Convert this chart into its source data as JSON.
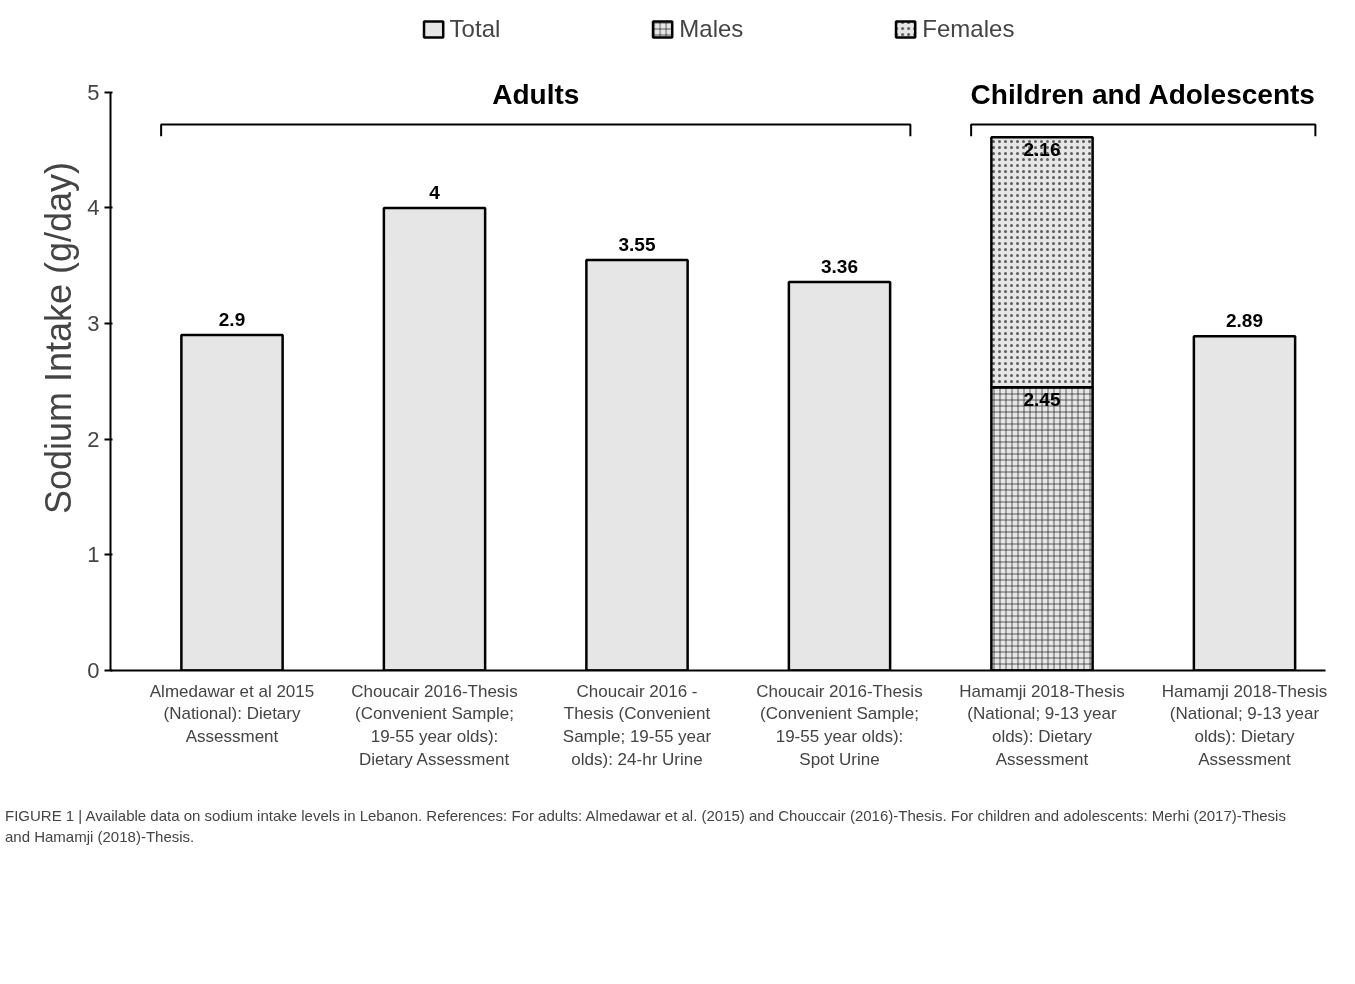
{
  "chart_data": {
    "type": "bar",
    "stacked": true,
    "ylabel": "Sodium Intake (g/day)",
    "categories": [
      "Almedawar et al 2015 (National): Dietary Assessment",
      "Choucair 2016-Thesis (Convenient Sample; 19-55 year olds): Dietary Assessment",
      "Choucair 2016 - Thesis (Convenient Sample; 19-55 year olds): 24-hr Urine",
      "Choucair 2016-Thesis (Convenient Sample; 19-55 year olds): Spot Urine",
      "Hamamji 2018-Thesis (National; 9-13 year olds): Dietary Assessment",
      "Hamamji 2018-Thesis (National; 9-13 year olds): Dietary Assessment"
    ],
    "series": [
      {
        "name": "Total",
        "color": "#e6e6e6",
        "values": [
          2.9,
          4,
          3.55,
          3.36,
          null,
          2.89
        ]
      },
      {
        "name": "Males",
        "color": "#e6e6e6",
        "values": [
          null,
          null,
          null,
          null,
          2.45,
          null
        ]
      },
      {
        "name": "Females",
        "color": "#e6e6e6",
        "values": [
          null,
          null,
          null,
          null,
          2.16,
          null
        ]
      }
    ],
    "ylim": [
      0,
      5
    ],
    "yticks": [
      0,
      1,
      2,
      3,
      4,
      5
    ],
    "data_labels": true,
    "legend": "top",
    "grid": false,
    "annotations": [
      "Adults",
      "Children and Adolescents",
      "FIGURE 1 | Available data on sodium intake levels in Lebanon. References: For adults: Almedawar et al. (2015) and Chouccair (2016)-Thesis. For children and adolescents: Merhi (2017)-Thesis and Hamamji (2018)-Thesis."
    ]
  }
}
